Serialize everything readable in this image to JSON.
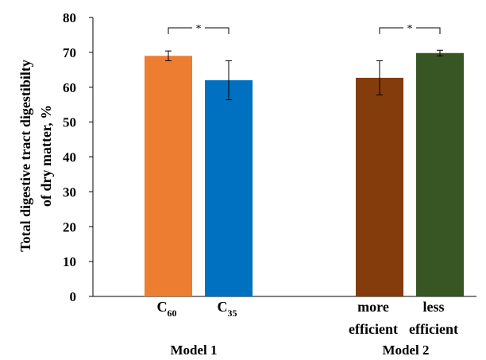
{
  "chart_data": {
    "type": "bar",
    "ylabel_line1": "Total  digestive  tract digestibilty",
    "ylabel_line2": "of  dry matter, %",
    "ylim": [
      0,
      80
    ],
    "yticks": [
      "0",
      "10",
      "20",
      "30",
      "40",
      "50",
      "60",
      "70",
      "80"
    ],
    "grid": false,
    "bars": [
      {
        "label": "C",
        "sub": "60",
        "value": 69.0,
        "err_low": 67.6,
        "err_high": 70.4,
        "color": "#ED7D31"
      },
      {
        "label": "C",
        "sub": "35",
        "value": 62.0,
        "err_low": 56.4,
        "err_high": 67.6,
        "color": "#0070C0"
      },
      {
        "label_line1": "more",
        "label_line2": "efficient",
        "value": 62.7,
        "err_low": 57.8,
        "err_high": 67.6,
        "color": "#843C0C"
      },
      {
        "label_line1": "less",
        "label_line2": "efficient",
        "value": 69.8,
        "err_low": 69.0,
        "err_high": 70.6,
        "color": "#375623"
      }
    ],
    "groups": [
      "Model 1",
      "Model 2"
    ],
    "significance_mark": "*"
  }
}
